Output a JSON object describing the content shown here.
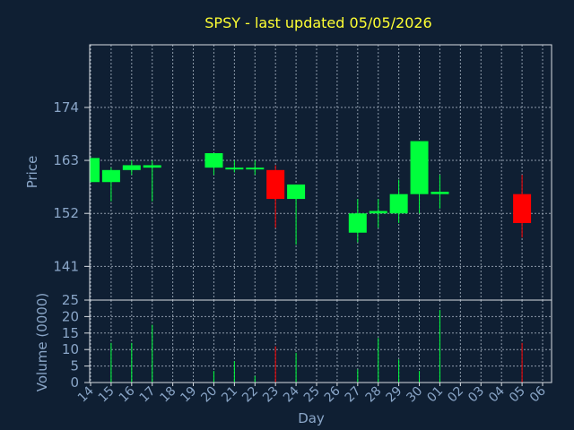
{
  "chart_data": {
    "type": "candlestick",
    "title": "SPSY - last updated 05/05/2026",
    "xlabel": "Day",
    "price_panel": {
      "ylabel": "Price",
      "yticks": [
        141,
        152,
        163,
        174
      ],
      "ylim": [
        134,
        187
      ]
    },
    "volume_panel": {
      "ylabel": "Volume (0000)",
      "yticks": [
        0,
        5,
        10,
        15,
        20,
        25
      ],
      "ylim": [
        0,
        25
      ]
    },
    "x_ticks": [
      "14",
      "15",
      "16",
      "17",
      "18",
      "19",
      "20",
      "21",
      "22",
      "23",
      "24",
      "25",
      "26",
      "27",
      "28",
      "29",
      "30",
      "01",
      "02",
      "03",
      "04",
      "05",
      "06"
    ],
    "colors": {
      "up": "#00ff3c",
      "down": "#ff0000"
    },
    "candles": [
      {
        "i": 0,
        "open": 158.5,
        "high": 163.5,
        "low": 158.5,
        "close": 163.5,
        "volume": 0
      },
      {
        "i": 1,
        "open": 158.5,
        "high": 161.5,
        "low": 154.5,
        "close": 161.0,
        "volume": 12
      },
      {
        "i": 2,
        "open": 161.0,
        "high": 163.0,
        "low": 160.0,
        "close": 162.0,
        "volume": 12
      },
      {
        "i": 3,
        "open": 161.5,
        "high": 163.0,
        "low": 154.5,
        "close": 162.0,
        "volume": 17.5
      },
      {
        "i": 6,
        "open": 161.5,
        "high": 164.5,
        "low": 160.0,
        "close": 164.5,
        "volume": 3.5
      },
      {
        "i": 7,
        "open": 161.5,
        "high": 163.0,
        "low": 160.5,
        "close": 161.5,
        "volume": 6.5
      },
      {
        "i": 8,
        "open": 161.5,
        "high": 163.0,
        "low": 160.0,
        "close": 161.5,
        "volume": 2
      },
      {
        "i": 9,
        "open": 161.0,
        "high": 162.0,
        "low": 149.0,
        "close": 155.0,
        "volume": 11
      },
      {
        "i": 10,
        "open": 155.0,
        "high": 158.0,
        "low": 145.5,
        "close": 158.0,
        "volume": 9
      },
      {
        "i": 13,
        "open": 148.0,
        "high": 155.0,
        "low": 146.0,
        "close": 152.0,
        "volume": 4
      },
      {
        "i": 14,
        "open": 152.0,
        "high": 155.0,
        "low": 149.0,
        "close": 152.5,
        "volume": 13.5
      },
      {
        "i": 15,
        "open": 152.0,
        "high": 159.0,
        "low": 150.0,
        "close": 156.0,
        "volume": 7
      },
      {
        "i": 16,
        "open": 156.0,
        "high": 167.0,
        "low": 152.0,
        "close": 167.0,
        "volume": 3.5
      },
      {
        "i": 17,
        "open": 156.0,
        "high": 160.0,
        "low": 153.0,
        "close": 156.5,
        "volume": 22
      },
      {
        "i": 21,
        "open": 156.0,
        "high": 160.0,
        "low": 147.0,
        "close": 150.0,
        "volume": 12
      }
    ]
  }
}
